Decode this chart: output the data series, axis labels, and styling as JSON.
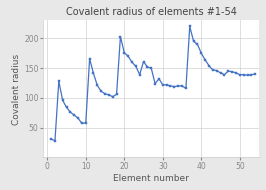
{
  "title": "Covalent radius of elements #1-54",
  "xlabel": "Element number",
  "ylabel": "Covalent radius",
  "x": [
    1,
    2,
    3,
    4,
    5,
    6,
    7,
    8,
    9,
    10,
    11,
    12,
    13,
    14,
    15,
    16,
    17,
    18,
    19,
    20,
    21,
    22,
    23,
    24,
    25,
    26,
    27,
    28,
    29,
    30,
    31,
    32,
    33,
    34,
    35,
    36,
    37,
    38,
    39,
    40,
    41,
    42,
    43,
    44,
    45,
    46,
    47,
    48,
    49,
    50,
    51,
    52,
    53,
    54
  ],
  "y": [
    31,
    28,
    128,
    96,
    84,
    76,
    71,
    66,
    57,
    58,
    166,
    141,
    121,
    111,
    107,
    105,
    102,
    106,
    203,
    176,
    170,
    160,
    153,
    139,
    161,
    152,
    150,
    124,
    132,
    122,
    122,
    120,
    119,
    120,
    120,
    116,
    220,
    195,
    190,
    175,
    164,
    154,
    147,
    146,
    142,
    139,
    145,
    144,
    142,
    139,
    139,
    138,
    139,
    140
  ],
  "line_color": "#4472C4",
  "marker": "s",
  "marker_size": 1.8,
  "line_width": 0.9,
  "figure_bg": "#e8e8e8",
  "plot_bg": "#ffffff",
  "grid_color": "#d0d0d0",
  "ylim": [
    0,
    230
  ],
  "xlim": [
    -1,
    55
  ],
  "yticks": [
    50,
    100,
    150,
    200
  ],
  "xticks": [
    0,
    10,
    20,
    30,
    40,
    50
  ],
  "title_fontsize": 7,
  "label_fontsize": 6.5,
  "tick_fontsize": 5.5
}
